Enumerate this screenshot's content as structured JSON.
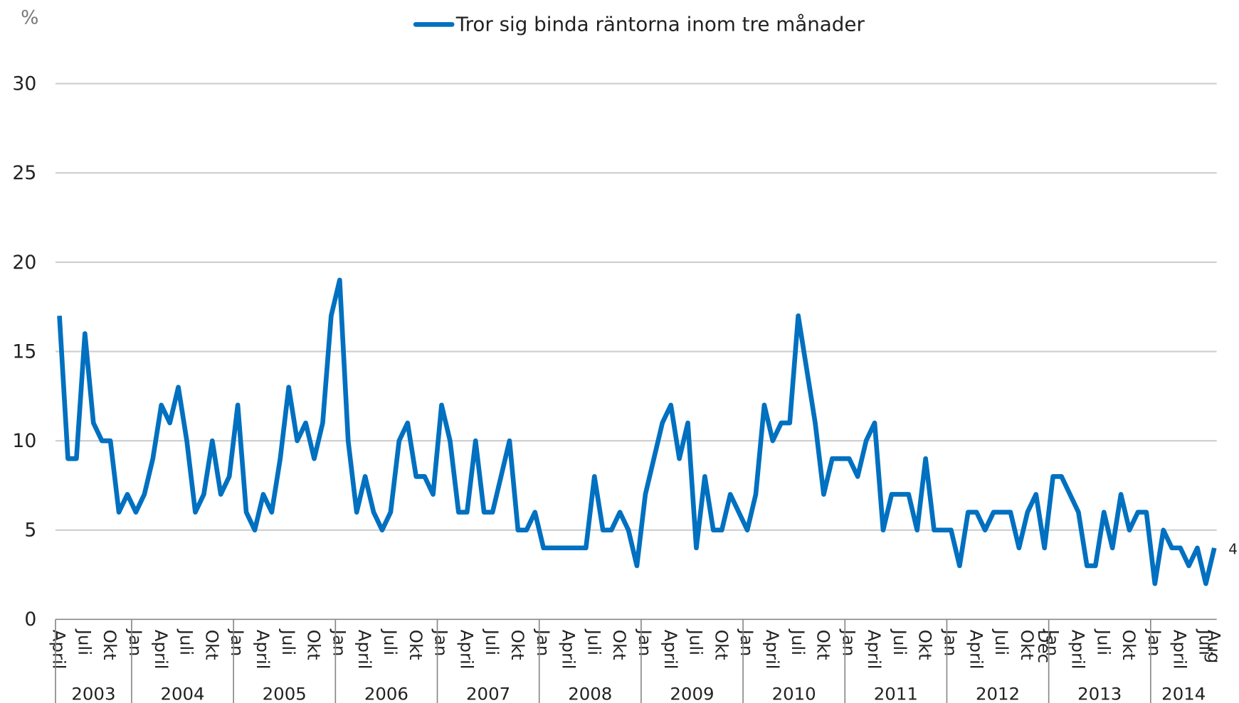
{
  "chart_data": {
    "type": "line",
    "y_unit": "%",
    "categories": [
      "April",
      null,
      null,
      "Juli",
      null,
      null,
      "Okt",
      null,
      null,
      "Jan",
      null,
      null,
      "April",
      null,
      null,
      "Juli",
      null,
      null,
      "Okt",
      null,
      null,
      "Jan",
      null,
      null,
      "April",
      null,
      null,
      "Juli",
      null,
      null,
      "Okt",
      null,
      null,
      "Jan",
      null,
      null,
      "April",
      null,
      null,
      "Juli",
      null,
      null,
      "Okt",
      null,
      null,
      "Jan",
      null,
      null,
      "April",
      null,
      null,
      "Juli",
      null,
      null,
      "Okt",
      null,
      null,
      "Jan",
      null,
      null,
      "April",
      null,
      null,
      "Juli",
      null,
      null,
      "Okt",
      null,
      null,
      "Jan",
      null,
      null,
      "April",
      null,
      null,
      "Juli",
      null,
      null,
      "Okt",
      null,
      null,
      "Jan",
      null,
      null,
      "April",
      null,
      null,
      "Juli",
      null,
      null,
      "Okt",
      null,
      null,
      "Jan",
      null,
      null,
      "April",
      null,
      null,
      "Juli",
      null,
      null,
      "Okt",
      null,
      null,
      "Jan",
      null,
      null,
      "April",
      null,
      null,
      "Juli",
      null,
      null,
      "Okt",
      null,
      "Dec",
      "Jan",
      null,
      null,
      "April",
      null,
      null,
      "Juli",
      null,
      null,
      "Okt",
      null,
      null,
      "Jan",
      null,
      null,
      "April",
      null,
      null,
      "Juli",
      "Aug"
    ],
    "groups": [
      {
        "label": "2003",
        "count": 9
      },
      {
        "label": "2004",
        "count": 12
      },
      {
        "label": "2005",
        "count": 12
      },
      {
        "label": "2006",
        "count": 12
      },
      {
        "label": "2007",
        "count": 12
      },
      {
        "label": "2008",
        "count": 12
      },
      {
        "label": "2009",
        "count": 12
      },
      {
        "label": "2010",
        "count": 12
      },
      {
        "label": "2011",
        "count": 12
      },
      {
        "label": "2012",
        "count": 12
      },
      {
        "label": "2013",
        "count": 12
      },
      {
        "label": "2014",
        "count": 8
      }
    ],
    "series": [
      {
        "name": "Tror sig binda räntorna inom tre månader",
        "color": "#0070c0",
        "values": [
          17,
          9,
          9,
          16,
          11,
          10,
          10,
          6,
          7,
          6,
          7,
          9,
          12,
          11,
          13,
          10,
          6,
          7,
          10,
          7,
          8,
          12,
          6,
          5,
          7,
          6,
          9,
          13,
          10,
          11,
          9,
          11,
          17,
          19,
          10,
          6,
          8,
          6,
          5,
          6,
          10,
          11,
          8,
          8,
          7,
          12,
          10,
          6,
          6,
          10,
          6,
          6,
          8,
          10,
          5,
          5,
          6,
          4,
          4,
          4,
          4,
          4,
          4,
          8,
          5,
          5,
          6,
          5,
          3,
          7,
          9,
          11,
          12,
          9,
          11,
          4,
          8,
          5,
          5,
          7,
          6,
          5,
          7,
          12,
          10,
          11,
          11,
          17,
          14,
          11,
          7,
          9,
          9,
          9,
          8,
          10,
          11,
          5,
          7,
          7,
          7,
          5,
          9,
          5,
          5,
          5,
          3,
          6,
          6,
          5,
          6,
          6,
          6,
          4,
          6,
          7,
          4,
          8,
          8,
          7,
          6,
          3,
          3,
          6,
          4,
          7,
          5,
          6,
          6,
          2,
          5,
          4,
          4,
          3,
          4,
          2,
          4
        ]
      }
    ],
    "ylim": [
      0,
      30
    ],
    "yticks": [
      0,
      5,
      10,
      15,
      20,
      25,
      30
    ],
    "grid": true,
    "legend": "top",
    "label_last_value": true
  }
}
